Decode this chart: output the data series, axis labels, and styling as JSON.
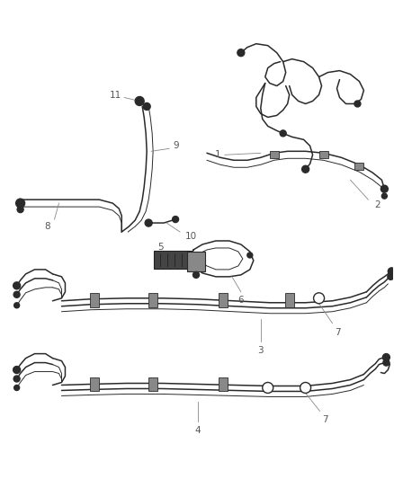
{
  "background_color": "#ffffff",
  "line_color": "#2a2a2a",
  "label_color": "#555555",
  "figsize": [
    4.38,
    5.33
  ],
  "dpi": 100
}
